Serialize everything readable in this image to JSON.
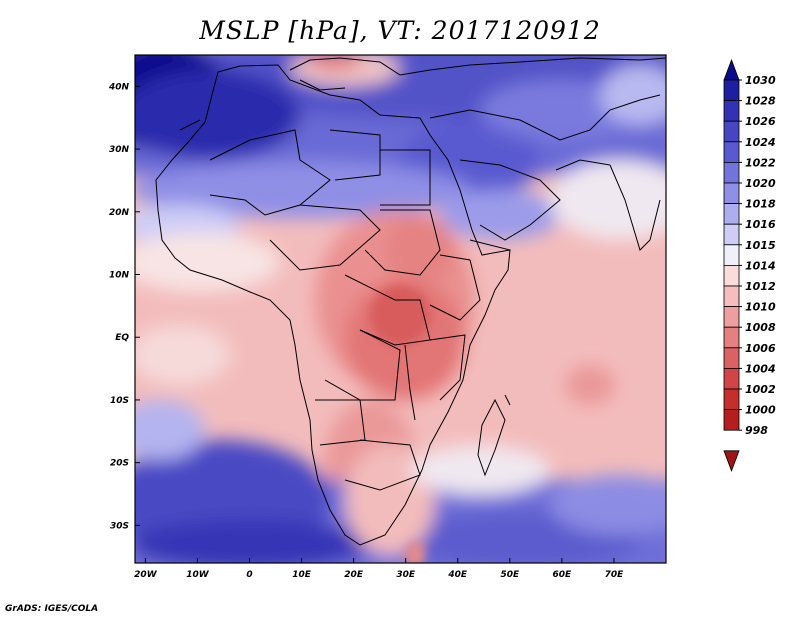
{
  "title": "MSLP [hPa], VT: 2017120912",
  "footer": "GrADS: IGES/COLA",
  "colors": {
    "frame": "#000000",
    "coast": "#000000"
  },
  "map": {
    "lon_range": [
      -22,
      80
    ],
    "lat_range": [
      -36,
      45
    ],
    "x_ticks": [
      {
        "value": -20,
        "label": "20W"
      },
      {
        "value": -10,
        "label": "10W"
      },
      {
        "value": 0,
        "label": "0"
      },
      {
        "value": 10,
        "label": "10E"
      },
      {
        "value": 20,
        "label": "20E"
      },
      {
        "value": 30,
        "label": "30E"
      },
      {
        "value": 40,
        "label": "40E"
      },
      {
        "value": 50,
        "label": "50E"
      },
      {
        "value": 60,
        "label": "60E"
      },
      {
        "value": 70,
        "label": "70E"
      }
    ],
    "y_ticks": [
      {
        "value": 40,
        "label": "40N"
      },
      {
        "value": 30,
        "label": "30N"
      },
      {
        "value": 20,
        "label": "20N"
      },
      {
        "value": 10,
        "label": "10N"
      },
      {
        "value": 0,
        "label": "EQ"
      },
      {
        "value": -10,
        "label": "10S"
      },
      {
        "value": -20,
        "label": "20S"
      },
      {
        "value": -30,
        "label": "30S"
      }
    ]
  },
  "colorbar": {
    "labels": [
      "1030",
      "1028",
      "1026",
      "1024",
      "1022",
      "1020",
      "1018",
      "1016",
      "1015",
      "1014",
      "1012",
      "1010",
      "1008",
      "1006",
      "1004",
      "1002",
      "1000",
      "998"
    ],
    "colors": [
      "#0a0a8c",
      "#1e1ea0",
      "#3232b4",
      "#4646c3",
      "#5a5ad0",
      "#7373dc",
      "#8f8fe6",
      "#adadef",
      "#cdcdf6",
      "#f0f0fa",
      "#fadcdc",
      "#f5bdbd",
      "#ee9e9e",
      "#e58080",
      "#db6262",
      "#d14545",
      "#c62d2d",
      "#b41e1e",
      "#9e1515"
    ]
  }
}
